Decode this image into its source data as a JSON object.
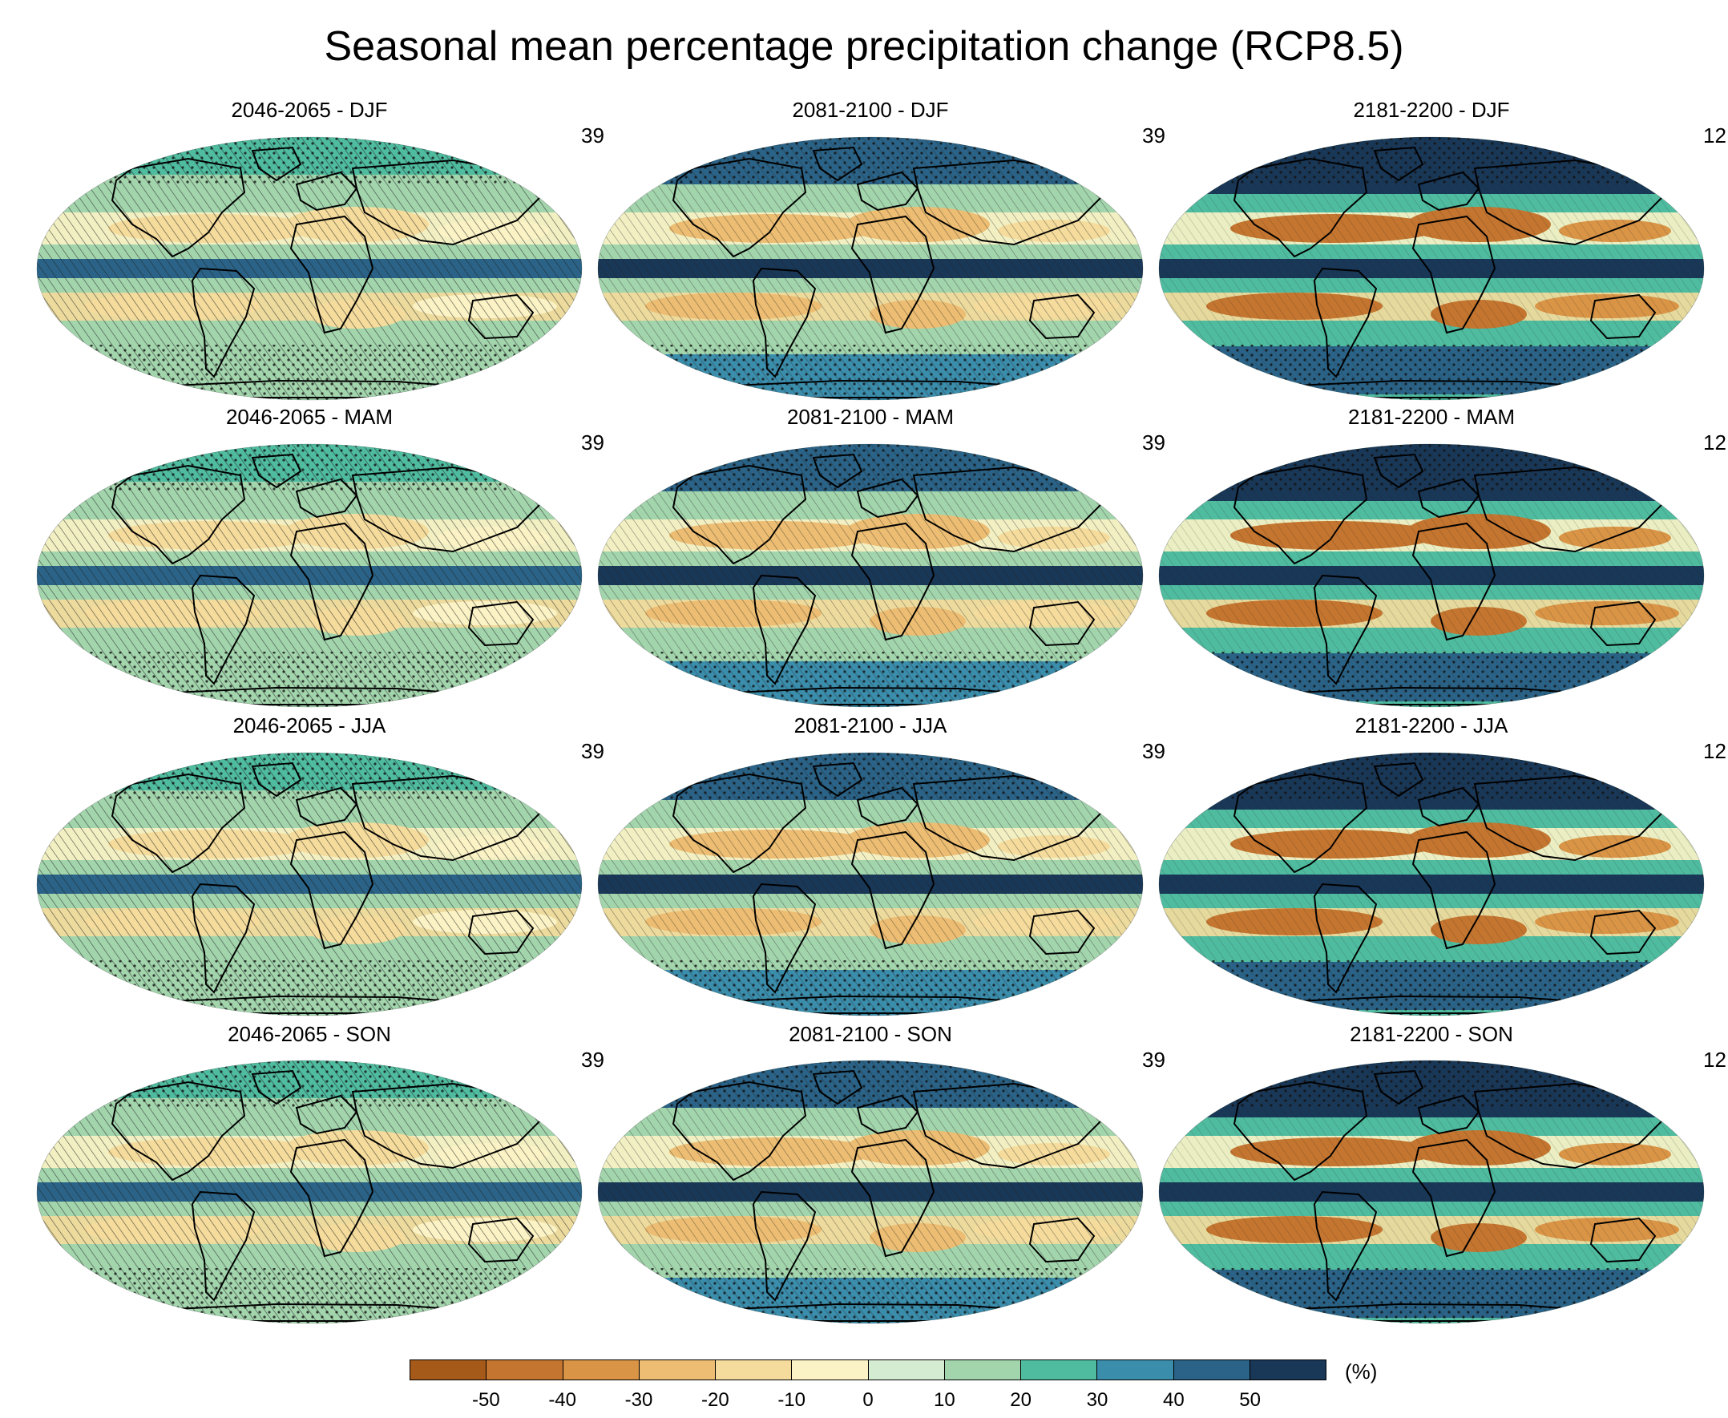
{
  "title": "Seasonal mean percentage precipitation change (RCP8.5)",
  "panels": [
    {
      "period": "2046-2065",
      "season": "DJF",
      "label": "2046-2065 - DJF",
      "models": "39"
    },
    {
      "period": "2081-2100",
      "season": "DJF",
      "label": "2081-2100 - DJF",
      "models": "39"
    },
    {
      "period": "2181-2200",
      "season": "DJF",
      "label": "2181-2200 - DJF",
      "models": "12"
    },
    {
      "period": "2046-2065",
      "season": "MAM",
      "label": "2046-2065 - MAM",
      "models": "39"
    },
    {
      "period": "2081-2100",
      "season": "MAM",
      "label": "2081-2100 - MAM",
      "models": "39"
    },
    {
      "period": "2181-2200",
      "season": "MAM",
      "label": "2181-2200 - MAM",
      "models": "12"
    },
    {
      "period": "2046-2065",
      "season": "JJA",
      "label": "2046-2065 - JJA",
      "models": "39"
    },
    {
      "period": "2081-2100",
      "season": "JJA",
      "label": "2081-2100 - JJA",
      "models": "39"
    },
    {
      "period": "2181-2200",
      "season": "JJA",
      "label": "2181-2200 - JJA",
      "models": "12"
    },
    {
      "period": "2046-2065",
      "season": "SON",
      "label": "2046-2065 - SON",
      "models": "39"
    },
    {
      "period": "2081-2100",
      "season": "SON",
      "label": "2081-2100 - SON",
      "models": "39"
    },
    {
      "period": "2181-2200",
      "season": "SON",
      "label": "2181-2200 - SON",
      "models": "12"
    }
  ],
  "colorbar": {
    "unit": "(%)",
    "tick_labels": [
      "-50",
      "-40",
      "-30",
      "-20",
      "-10",
      "0",
      "10",
      "20",
      "30",
      "40",
      "50"
    ],
    "colors": [
      "#a65a1a",
      "#c4752f",
      "#d99446",
      "#ecbd72",
      "#f5dc9c",
      "#fbf3c5",
      "#d4ecd1",
      "#a3d5ad",
      "#4fbca0",
      "#3b8dac",
      "#2a6387",
      "#193757"
    ]
  }
}
